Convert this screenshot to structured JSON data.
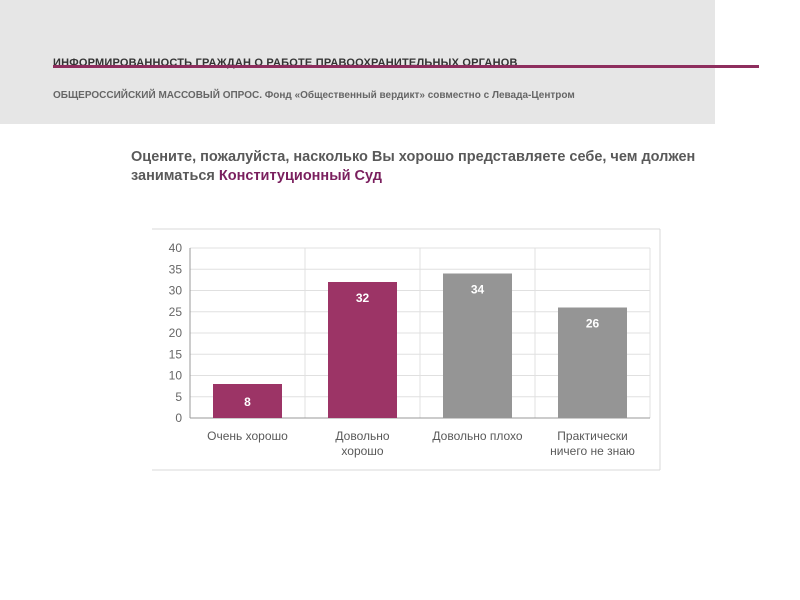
{
  "header": {
    "title": "ИНФОРМИРОВАННОСТЬ ГРАЖДАН О РАБОТЕ ПРАВООХРАНИТЕЛЬНЫХ ОРГАНОВ",
    "subtitle": "ОБЩЕРОССИЙСКИЙ МАССОВЫЙ ОПРОС. Фонд «Общественный вердикт» совместно с Левада-Центром",
    "accent_color": "#8e2e5e"
  },
  "question": {
    "text": "Оцените, пожалуйста, насколько Вы хорошо представляете себе, чем должен заниматься ",
    "highlight": "Конституционный Суд"
  },
  "chart_data": {
    "type": "bar",
    "categories": [
      [
        "Очень хорошо"
      ],
      [
        "Довольно",
        "хорошо"
      ],
      [
        "Довольно плохо"
      ],
      [
        "Практически",
        "ничего не знаю"
      ]
    ],
    "values": [
      8,
      32,
      34,
      26
    ],
    "colors": [
      "#9c3466",
      "#9c3466",
      "#959595",
      "#959595"
    ],
    "ylim": [
      0,
      40
    ],
    "yticks": [
      0,
      5,
      10,
      15,
      20,
      25,
      30,
      35,
      40
    ],
    "grid": true
  }
}
